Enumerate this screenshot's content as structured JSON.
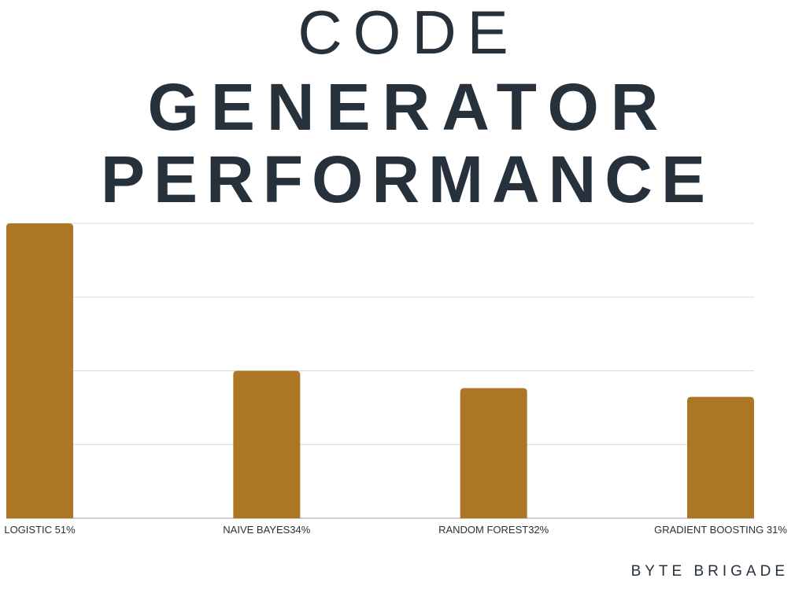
{
  "title": {
    "line1": "CODE",
    "line2": "GENERATOR",
    "line3": "PERFORMANCE"
  },
  "brand": "BYTE BRIGADE",
  "colors": {
    "bar": "#ab7724",
    "text": "#27313b",
    "grid": "#d9d9d9",
    "axis": "#bfbfbf"
  },
  "chart_data": {
    "type": "bar",
    "categories": [
      "LOGISTIC 51%",
      "NAIVE BAYES34%",
      "RANDOM FOREST32%",
      "GRADIENT BOOSTING 31%"
    ],
    "values": [
      51,
      34,
      32,
      31
    ],
    "ylim": [
      17,
      51
    ],
    "grid": true,
    "title": "CODE GENERATOR PERFORMANCE",
    "xlabel": "",
    "ylabel": ""
  }
}
